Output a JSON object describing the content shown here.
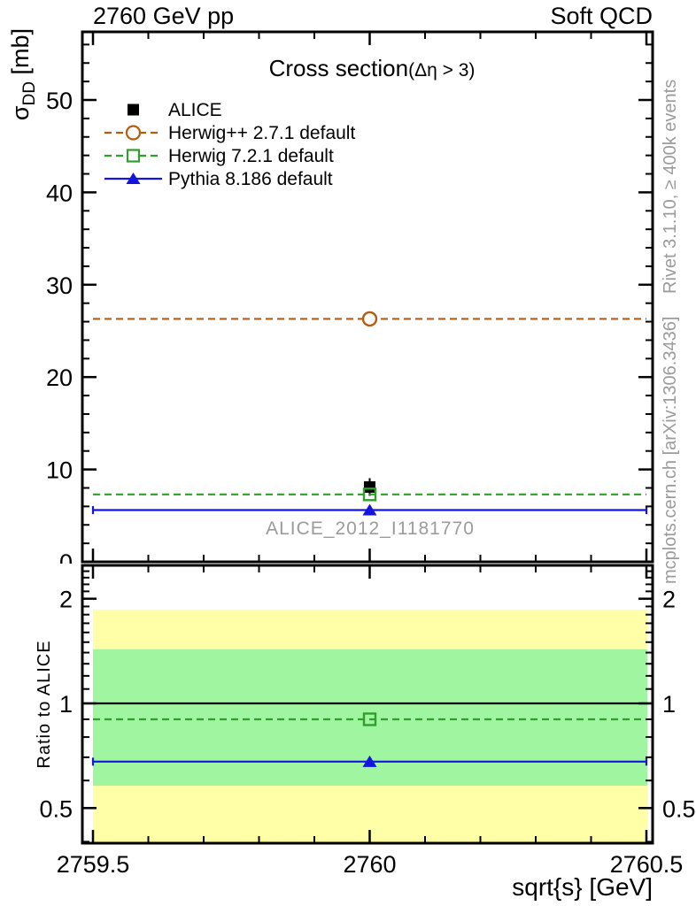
{
  "header": {
    "left": "2760 GeV pp",
    "right": "Soft QCD"
  },
  "title": {
    "main": "Cross section",
    "paren": "(Δη > 3)"
  },
  "watermark": "ALICE_2012_I1181770",
  "side_notes": {
    "top": "Rivet 3.1.10, ≥ 400k events",
    "bottom": "mcplots.cern.ch [arXiv:1306.3436]"
  },
  "axes": {
    "top_y": {
      "sigma": "σ",
      "sub": "DD",
      "unit": " [mb]",
      "major_ticks": [
        0,
        10,
        20,
        30,
        40,
        50
      ]
    },
    "ratio_y": {
      "label": "Ratio to ALICE",
      "ticks": [
        {
          "v": 0.5,
          "label": "0.5"
        },
        {
          "v": 1,
          "label": "1"
        },
        {
          "v": 2,
          "label": "2"
        }
      ]
    },
    "x": {
      "label": "sqrt{s} [GeV]",
      "ticks": [
        {
          "v": 2759.5,
          "label": "2759.5"
        },
        {
          "v": 2760,
          "label": "2760"
        },
        {
          "v": 2760.5,
          "label": "2760.5"
        }
      ]
    }
  },
  "legend": [
    {
      "label": "ALICE",
      "marker": "filled-square",
      "line": "none",
      "color": "#000000"
    },
    {
      "label": "Herwig++ 2.7.1 default",
      "marker": "open-circle",
      "line": "dashed",
      "color": "#b45c10"
    },
    {
      "label": "Herwig 7.2.1 default",
      "marker": "open-square",
      "line": "dashed",
      "color": "#2f9e2a"
    },
    {
      "label": "Pythia 8.186 default",
      "marker": "filled-triangle",
      "line": "solid",
      "color": "#1414e0"
    }
  ],
  "chart_data": {
    "type": "line",
    "x_point": 2760,
    "xlim": [
      2759.5,
      2760.5
    ],
    "xlabel": "sqrt{s} [GeV]",
    "top_panel": {
      "ylabel": "sigma_DD [mb]",
      "ylim": [
        0,
        57.4
      ],
      "series": [
        {
          "name": "ALICE",
          "value": 8.1,
          "marker": "filled-square",
          "line": "none",
          "color": "#000000"
        },
        {
          "name": "Herwig++ 2.7.1 default",
          "value": 26.3,
          "marker": "open-circle",
          "line": "dashed",
          "color": "#b45c10"
        },
        {
          "name": "Herwig 7.2.1 default",
          "value": 7.3,
          "marker": "open-square",
          "line": "dashed",
          "color": "#2f9e2a"
        },
        {
          "name": "Pythia 8.186 default",
          "value": 5.6,
          "marker": "filled-triangle",
          "line": "solid",
          "color": "#1414e0",
          "end_caps": true
        }
      ]
    },
    "ratio_panel": {
      "ylabel": "Ratio to ALICE",
      "yscale": "log",
      "ylim": [
        0.4,
        2.5
      ],
      "bands": [
        {
          "name": "data-uncertainty-outer",
          "lo": 0.4,
          "hi": 1.86,
          "color": "#ffffa8"
        },
        {
          "name": "data-uncertainty-inner",
          "lo": 0.58,
          "hi": 1.43,
          "color": "#a0f6a0"
        }
      ],
      "series": [
        {
          "name": "ALICE reference",
          "value": 1.0,
          "marker": "none",
          "line": "solid",
          "color": "#000000",
          "full_width": true
        },
        {
          "name": "Herwig 7.2.1 default",
          "value": 0.9,
          "marker": "open-square",
          "line": "dashed",
          "color": "#2f9e2a"
        },
        {
          "name": "Pythia 8.186 default",
          "value": 0.68,
          "marker": "filled-triangle",
          "line": "solid",
          "color": "#1414e0",
          "end_caps": true
        }
      ]
    }
  }
}
